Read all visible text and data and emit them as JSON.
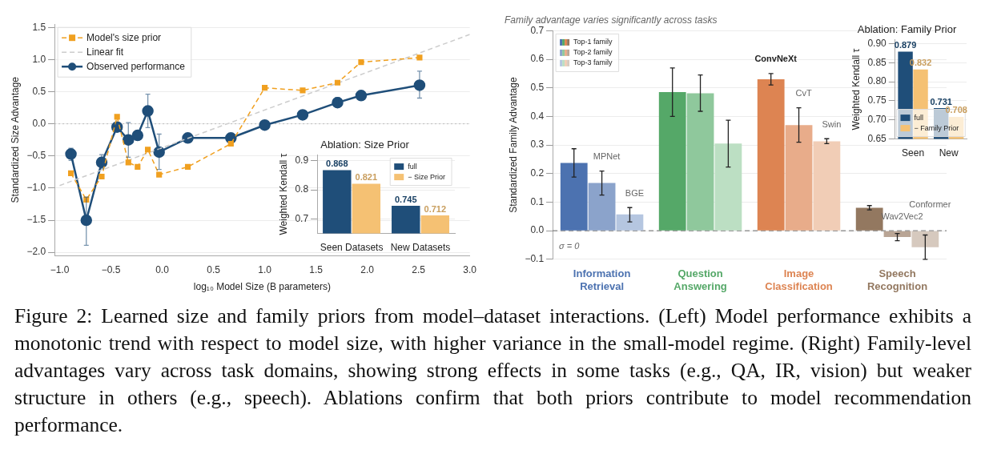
{
  "chart_data": [
    {
      "type": "line",
      "xlabel": "log₁₀ Model Size (B parameters)",
      "ylabel": "Standardized Size Advantage",
      "xlim": [
        -1.05,
        3.0
      ],
      "ylim": [
        -2.05,
        1.55
      ],
      "xticks": [
        {
          "value": -1,
          "label": "−1.0"
        },
        {
          "value": -0.5,
          "label": "−0.5"
        },
        {
          "value": 0,
          "label": "0.0"
        },
        {
          "value": 0.5,
          "label": "0.5"
        },
        {
          "value": 1,
          "label": "1.0"
        },
        {
          "value": 1.5,
          "label": "1.5"
        },
        {
          "value": 2,
          "label": "2.0"
        },
        {
          "value": 2.5,
          "label": "2.5"
        },
        {
          "value": 3,
          "label": "3.0"
        }
      ],
      "yticks": [
        {
          "value": -2,
          "label": "−2.0"
        },
        {
          "value": -1.5,
          "label": "−1.5"
        },
        {
          "value": -1,
          "label": "−1.0"
        },
        {
          "value": -0.5,
          "label": "−0.5"
        },
        {
          "value": 0,
          "label": "0.0"
        },
        {
          "value": 0.5,
          "label": "0.5"
        },
        {
          "value": 1,
          "label": "1.0"
        },
        {
          "value": 1.5,
          "label": "1.5"
        }
      ],
      "grid": "y",
      "legend": "top left",
      "ref_lines": [
        {
          "axis": "y",
          "value": 0,
          "color": "#bbbbbb",
          "line_style": "dotted"
        }
      ],
      "series": [
        {
          "name": "Model's size prior",
          "type": "line",
          "color": "#f0a020",
          "marker": "square",
          "line_style": "dashed",
          "x": [
            -0.89,
            -0.74,
            -0.59,
            -0.44,
            -0.33,
            -0.24,
            -0.14,
            -0.03,
            0.25,
            0.67,
            1.0,
            1.37,
            1.71,
            1.94,
            2.51
          ],
          "values": [
            -0.77,
            -1.18,
            -0.82,
            0.11,
            -0.6,
            -0.67,
            -0.4,
            -0.79,
            -0.67,
            -0.31,
            0.56,
            0.52,
            0.64,
            0.96,
            1.03
          ]
        },
        {
          "name": "Linear fit",
          "type": "line",
          "color": "#cccccc",
          "marker": "none",
          "line_style": "dashed",
          "x": [
            -1.0,
            3.0
          ],
          "values": [
            -0.96,
            1.39
          ]
        },
        {
          "name": "Observed performance",
          "type": "line",
          "color": "#1f4e79",
          "marker": "circle",
          "line_style": "solid",
          "x": [
            -0.89,
            -0.74,
            -0.59,
            -0.44,
            -0.33,
            -0.24,
            -0.14,
            -0.03,
            0.25,
            0.67,
            1.0,
            1.37,
            1.71,
            1.94,
            2.51
          ],
          "values": [
            -0.47,
            -1.5,
            -0.6,
            -0.05,
            -0.25,
            -0.18,
            0.2,
            -0.44,
            -0.22,
            -0.22,
            -0.02,
            0.14,
            0.33,
            0.44,
            0.6
          ],
          "errors": [
            [
              -0.57,
              -0.38
            ],
            [
              -1.89,
              -1.14
            ],
            [
              -0.7,
              -0.48
            ],
            [
              -0.1,
              0.0
            ],
            [
              -0.52,
              0.02
            ],
            null,
            [
              -0.06,
              0.46
            ],
            [
              -0.71,
              -0.16
            ],
            null,
            null,
            null,
            null,
            [
              0.26,
              0.41
            ],
            null,
            [
              0.4,
              0.82
            ]
          ]
        }
      ],
      "annotations": [
        "Figure 2: Learned size and family priors from model–dataset interactions. (Left) Model performance exhibits a monotonic trend with respect to model size, with higher variance in the small-model regime. (Right) Family-level advantages vary across task domains, showing strong effects in some tasks (e.g., QA, IR, vision) but weaker structure in others (e.g., speech). Ablations confirm that both priors contribute to model recommendation performance."
      ]
    },
    {
      "type": "bar",
      "title": "Ablation: Size Prior",
      "ylabel": "Weighted Kendall τ",
      "categories": [
        "Seen Datasets",
        "New Datasets"
      ],
      "ylim": [
        0.65,
        0.92
      ],
      "yticks": [
        {
          "value": 0.7,
          "label": "0.7"
        },
        {
          "value": 0.8,
          "label": "0.8"
        },
        {
          "value": 0.9,
          "label": "0.9"
        }
      ],
      "grid": "y",
      "legend": "top right",
      "data_labels": true,
      "series": [
        {
          "name": "full",
          "color": "#1f4e79",
          "values": [
            0.868,
            0.745
          ]
        },
        {
          "name": "− Size Prior",
          "color": "#f5c173",
          "values": [
            0.821,
            0.712
          ]
        }
      ]
    },
    {
      "type": "bar",
      "subtitle": "Family advantage varies significantly across tasks",
      "ylabel": "Standardized Family Advantage",
      "categories": [
        "Information Retrieval",
        "Question Answering",
        "Image Classification",
        "Speech Recognition"
      ],
      "ylim": [
        -0.1,
        0.7
      ],
      "yticks": [
        {
          "value": -0.1,
          "label": "−0.1"
        },
        {
          "value": 0,
          "label": "0.0"
        },
        {
          "value": 0.1,
          "label": "0.1"
        },
        {
          "value": 0.2,
          "label": "0.2"
        },
        {
          "value": 0.3,
          "label": "0.3"
        },
        {
          "value": 0.4,
          "label": "0.4"
        },
        {
          "value": 0.5,
          "label": "0.5"
        },
        {
          "value": 0.6,
          "label": "0.6"
        },
        {
          "value": 0.7,
          "label": "0.7"
        }
      ],
      "grid": "y",
      "legend": "top left",
      "ref_lines": [
        {
          "axis": "y",
          "value": 0,
          "label": "σ = 0",
          "color": "#666666",
          "line_style": "dashed"
        }
      ],
      "series": [
        {
          "name": "Top-1 family",
          "colors": [
            "#4c72b0",
            "#55a868",
            "#dd8452",
            "#937860"
          ],
          "values": [
            0.237,
            0.485,
            0.53,
            0.08
          ],
          "errors": [
            [
              0.188,
              0.287
            ],
            [
              0.4,
              0.57
            ],
            [
              0.51,
              0.55
            ],
            [
              0.073,
              0.088
            ]
          ],
          "value_labels": [
            null,
            null,
            "ConvNeXt",
            null
          ]
        },
        {
          "name": "Top-2 family",
          "colors": [
            "#8ba3cb",
            "#8fc89c",
            "#e8ac8a",
            "#b9a595"
          ],
          "values": [
            0.167,
            0.481,
            0.37,
            -0.022
          ],
          "errors": [
            [
              0.125,
              0.209
            ],
            [
              0.418,
              0.545
            ],
            [
              0.31,
              0.43
            ],
            [
              -0.035,
              -0.01
            ]
          ],
          "value_labels": [
            "MPNet",
            null,
            "CvT",
            "Wav2Vec2"
          ]
        },
        {
          "name": "Top-3 family",
          "colors": [
            "#b5c6e0",
            "#bcdfc3",
            "#f1cdb6",
            "#d6c9be"
          ],
          "values": [
            0.057,
            0.305,
            0.313,
            -0.058
          ],
          "errors": [
            [
              0.031,
              0.081
            ],
            [
              0.223,
              0.387
            ],
            [
              0.305,
              0.322
            ],
            [
              -0.1,
              -0.015
            ]
          ],
          "value_labels": [
            "BGE",
            null,
            "Swin",
            "Conformer"
          ]
        }
      ]
    },
    {
      "type": "bar",
      "title": "Ablation: Family Prior",
      "ylabel": "Weighted Kendall τ",
      "categories": [
        "Seen",
        "New"
      ],
      "ylim": [
        0.65,
        0.91
      ],
      "yticks": [
        {
          "value": 0.65,
          "label": "0.65"
        },
        {
          "value": 0.7,
          "label": "0.70"
        },
        {
          "value": 0.75,
          "label": "0.75"
        },
        {
          "value": 0.8,
          "label": "0.80"
        },
        {
          "value": 0.85,
          "label": "0.85"
        },
        {
          "value": 0.9,
          "label": "0.90"
        }
      ],
      "grid": "y",
      "legend": "bottom",
      "data_labels": true,
      "series": [
        {
          "name": "full",
          "color": "#1f4e79",
          "values": [
            0.879,
            0.731
          ]
        },
        {
          "name": "− Family Prior",
          "color": "#f5c173",
          "values": [
            0.832,
            0.708
          ]
        }
      ]
    }
  ]
}
